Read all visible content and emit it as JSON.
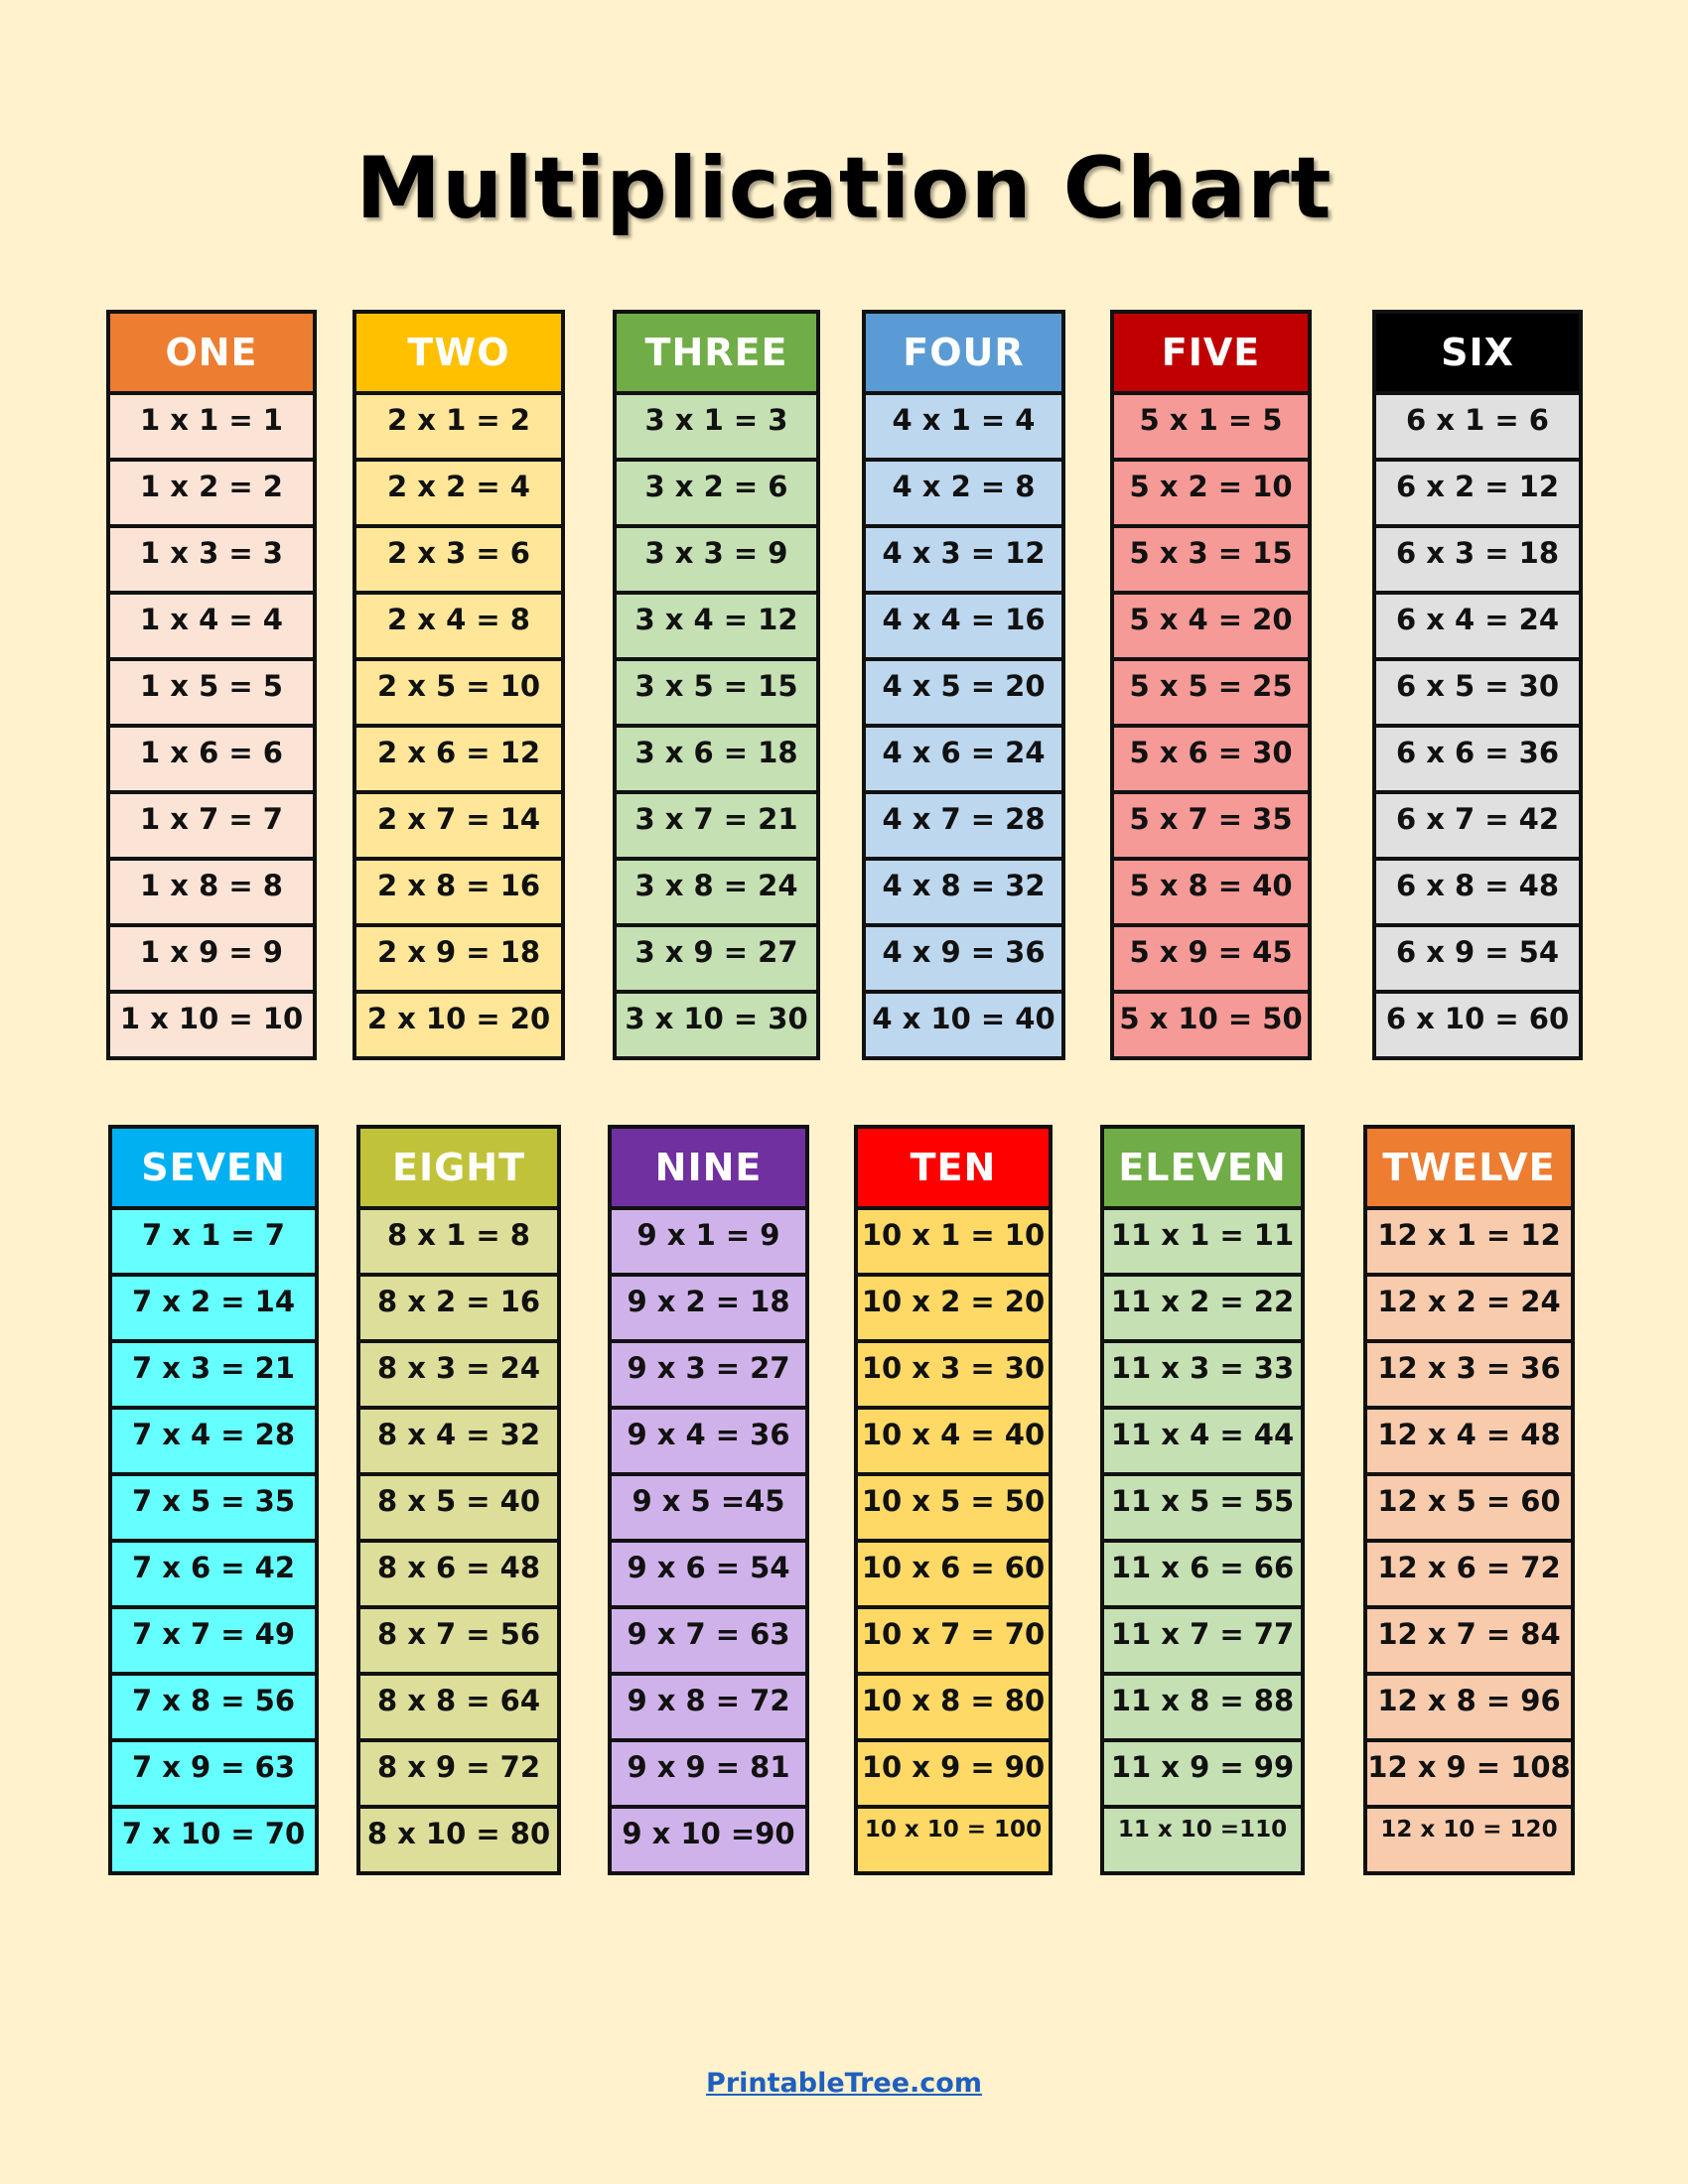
{
  "title": "Multiplication Chart",
  "footer_link": "PrintableTree.com",
  "colors": {
    "background": "#FFF2CC"
  },
  "tables": [
    {
      "name": "ONE",
      "header_color": "#ED7D31",
      "body_color": "#FBE4D5",
      "rows": [
        "1 x 1 = 1",
        "1 x 2 = 2",
        "1 x 3 = 3",
        "1 x 4 = 4",
        "1 x 5 = 5",
        "1 x 6 = 6",
        "1 x 7 = 7",
        "1 x 8 = 8",
        "1 x 9 = 9",
        "1 x 10 = 10"
      ]
    },
    {
      "name": "TWO",
      "header_color": "#FFC000",
      "body_color": "#FFE699",
      "rows": [
        "2 x 1 = 2",
        "2 x 2 = 4",
        "2 x 3 = 6",
        "2 x 4 = 8",
        "2 x 5 = 10",
        "2 x 6 = 12",
        "2 x 7 = 14",
        "2 x 8 = 16",
        "2 x 9 = 18",
        "2 x 10 = 20"
      ]
    },
    {
      "name": "THREE",
      "header_color": "#70AD47",
      "body_color": "#C5E0B3",
      "rows": [
        "3 x 1 = 3",
        "3 x 2 = 6",
        "3 x 3 = 9",
        "3 x 4 = 12",
        "3 x 5 = 15",
        "3 x 6 = 18",
        "3 x 7 = 21",
        "3 x 8 = 24",
        "3 x 9 = 27",
        "3 x 10 = 30"
      ]
    },
    {
      "name": "FOUR",
      "header_color": "#5B9BD5",
      "body_color": "#BDD7EE",
      "rows": [
        "4 x 1 = 4",
        "4 x 2 = 8",
        "4 x 3 = 12",
        "4 x 4 = 16",
        "4 x 5 = 20",
        "4 x 6 = 24",
        "4 x 7 = 28",
        "4 x 8 = 32",
        "4 x 9 = 36",
        "4 x 10 = 40"
      ]
    },
    {
      "name": "FIVE",
      "header_color": "#C00000",
      "body_color": "#F59A97",
      "rows": [
        "5 x 1 = 5",
        "5 x 2 = 10",
        "5 x 3 = 15",
        "5 x 4 = 20",
        "5 x 5 = 25",
        "5 x 6 = 30",
        "5 x 7 = 35",
        "5 x 8 = 40",
        "5 x 9 = 45",
        "5 x 10 = 50"
      ]
    },
    {
      "name": "SIX",
      "header_color": "#000000",
      "body_color": "#E0E0E0",
      "rows": [
        "6 x 1 = 6",
        "6 x 2 = 12",
        "6 x 3 = 18",
        "6 x 4 = 24",
        "6 x 5 = 30",
        "6 x 6 = 36",
        "6 x 7 = 42",
        "6 x 8 = 48",
        "6 x 9 = 54",
        "6 x 10 = 60"
      ]
    },
    {
      "name": "SEVEN",
      "header_color": "#00B0F0",
      "body_color": "#66FFFF",
      "rows": [
        "7 x 1 = 7",
        "7 x 2 = 14",
        "7 x 3 = 21",
        "7 x 4 = 28",
        "7 x 5 = 35",
        "7 x 6 = 42",
        "7 x 7 = 49",
        "7 x 8 = 56",
        "7 x 9 = 63",
        "7 x 10 = 70"
      ]
    },
    {
      "name": "EIGHT",
      "header_color": "#C0C33A",
      "body_color": "#DDDE99",
      "rows": [
        "8 x 1 = 8",
        "8 x 2 = 16",
        "8 x 3 = 24",
        "8 x 4 = 32",
        "8 x 5 = 40",
        "8 x 6 = 48",
        "8 x 7 = 56",
        "8 x 8 = 64",
        "8 x 9 = 72",
        "8 x 10 = 80"
      ]
    },
    {
      "name": "NINE",
      "header_color": "#7030A0",
      "body_color": "#D0B2EA",
      "rows": [
        "9 x 1 = 9",
        "9 x 2 = 18",
        "9 x 3 = 27",
        "9 x 4 = 36",
        "9 x 5 =45",
        "9 x 6 = 54",
        "9 x 7 = 63",
        "9 x 8 = 72",
        "9 x 9 = 81",
        "9 x 10 =90"
      ]
    },
    {
      "name": "TEN",
      "header_color": "#FF0000",
      "body_color": "#FFD966",
      "rows": [
        "10 x 1 = 10",
        "10 x 2 = 20",
        "10 x 3 = 30",
        "10 x 4 = 40",
        "10 x 5 = 50",
        "10 x 6 = 60",
        "10 x 7 = 70",
        "10 x 8 = 80",
        "10 x 9 = 90",
        "10 x 10 = 100"
      ]
    },
    {
      "name": "ELEVEN",
      "header_color": "#70AD47",
      "body_color": "#C5E0B3",
      "rows": [
        "11 x 1 = 11",
        "11 x 2 = 22",
        "11 x 3 = 33",
        "11 x 4 = 44",
        "11 x 5 = 55",
        "11 x 6 = 66",
        "11 x 7 = 77",
        "11 x 8 = 88",
        "11 x 9 = 99",
        "11 x 10 =110"
      ]
    },
    {
      "name": "TWELVE",
      "header_color": "#ED7D31",
      "body_color": "#F8CBAD",
      "rows": [
        "12 x 1 = 12",
        "12 x 2 = 24",
        "12 x 3 = 36",
        "12 x 4 = 48",
        "12 x 5 = 60",
        "12 x 6 = 72",
        "12 x 7 = 84",
        "12 x 8 = 96",
        "12 x 9 = 108",
        "12 x 10 = 120"
      ]
    }
  ]
}
